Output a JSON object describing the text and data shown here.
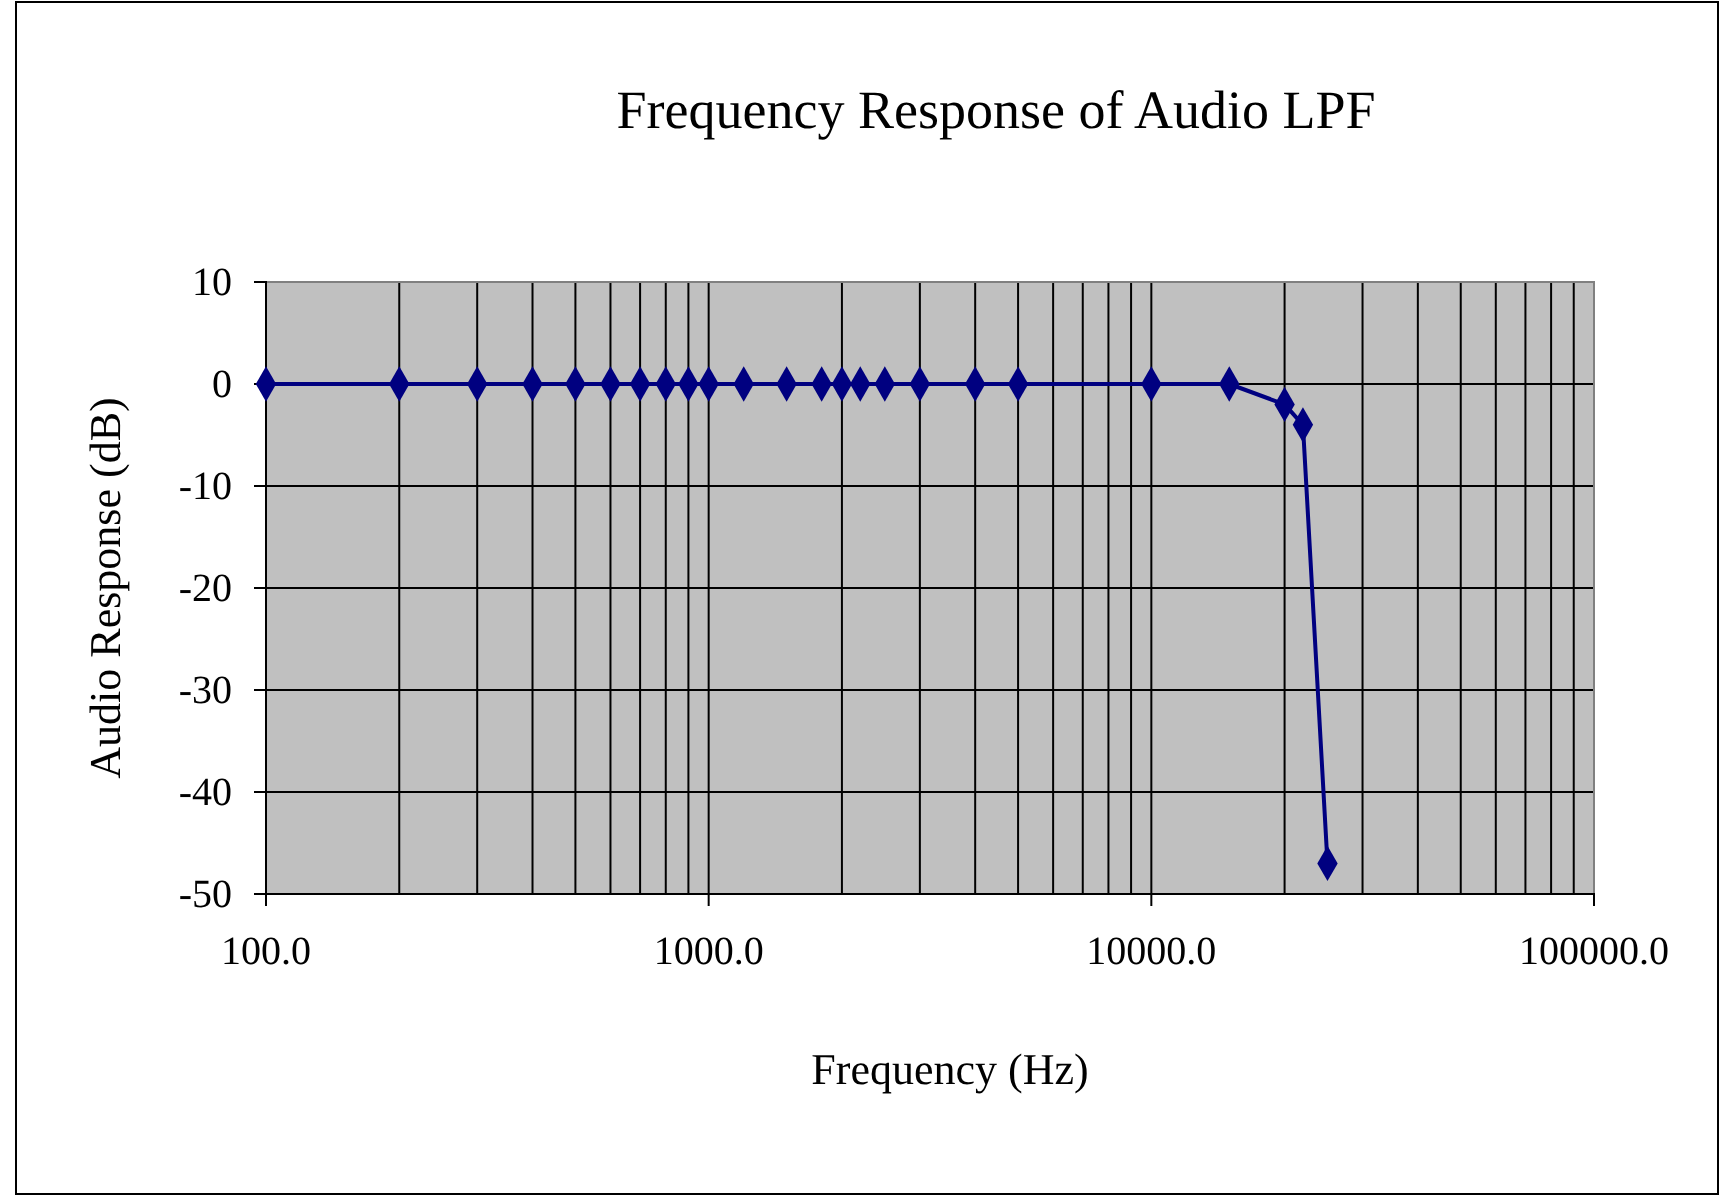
{
  "chart_data": {
    "type": "line",
    "title": "Frequency Response of Audio LPF",
    "xlabel": "Frequency (Hz)",
    "ylabel": "Audio Response (dB)",
    "x": [
      100,
      200,
      300,
      400,
      500,
      600,
      700,
      800,
      900,
      1000,
      1200,
      1500,
      1800,
      2000,
      2200,
      2500,
      3000,
      4000,
      5000,
      10000,
      15000,
      20000,
      22000,
      25000
    ],
    "series": [
      {
        "color": "#000080",
        "values": [
          0,
          0,
          0,
          0,
          0,
          0,
          0,
          0,
          0,
          0,
          0,
          0,
          0,
          0,
          0,
          0,
          0,
          0,
          0,
          0,
          0,
          -2,
          -4,
          -47
        ]
      }
    ],
    "log": "x",
    "xlim": [
      100,
      100000
    ],
    "xticks": [
      {
        "value": 100,
        "label": "100.0"
      },
      {
        "value": 200,
        "label": null
      },
      {
        "value": 300,
        "label": null
      },
      {
        "value": 400,
        "label": null
      },
      {
        "value": 500,
        "label": null
      },
      {
        "value": 600,
        "label": null
      },
      {
        "value": 700,
        "label": null
      },
      {
        "value": 800,
        "label": null
      },
      {
        "value": 900,
        "label": null
      },
      {
        "value": 1000,
        "label": "1000.0"
      },
      {
        "value": 2000,
        "label": null
      },
      {
        "value": 3000,
        "label": null
      },
      {
        "value": 4000,
        "label": null
      },
      {
        "value": 5000,
        "label": null
      },
      {
        "value": 6000,
        "label": null
      },
      {
        "value": 7000,
        "label": null
      },
      {
        "value": 8000,
        "label": null
      },
      {
        "value": 9000,
        "label": null
      },
      {
        "value": 10000,
        "label": "10000.0"
      },
      {
        "value": 20000,
        "label": null
      },
      {
        "value": 30000,
        "label": null
      },
      {
        "value": 40000,
        "label": null
      },
      {
        "value": 50000,
        "label": null
      },
      {
        "value": 60000,
        "label": null
      },
      {
        "value": 70000,
        "label": null
      },
      {
        "value": 80000,
        "label": null
      },
      {
        "value": 90000,
        "label": null
      },
      {
        "value": 100000,
        "label": "100000.0"
      }
    ],
    "ylim": [
      -50,
      10
    ],
    "yticks": [
      -50,
      -40,
      -30,
      -20,
      -10,
      0,
      10
    ],
    "grid": true,
    "marker": "diamond",
    "line_style": "solid"
  }
}
